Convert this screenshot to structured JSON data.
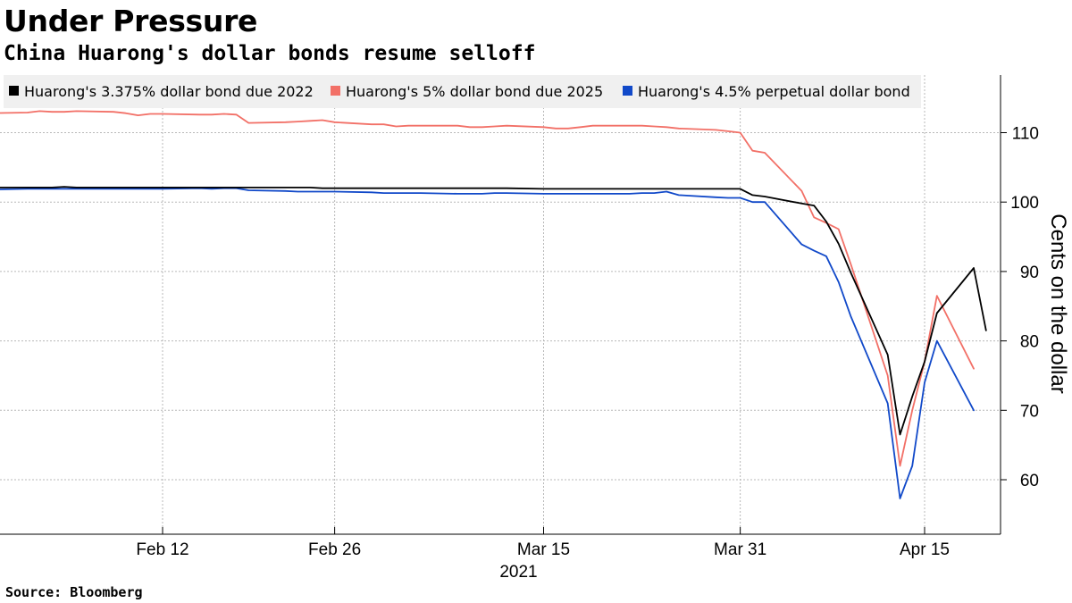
{
  "header": {
    "title": "Under Pressure",
    "subtitle": "China Huarong's dollar bonds resume selloff"
  },
  "footer": {
    "source": "Source: Bloomberg"
  },
  "chart_data": {
    "type": "line",
    "title": "Under Pressure",
    "subtitle": "China Huarong's dollar bonds resume selloff",
    "ylabel": "Cents on the dollar",
    "xlabel": "",
    "x_year_label": "2021",
    "ylim": [
      53,
      118
    ],
    "y_axis_side": "right",
    "y_ticks": [
      60,
      70,
      80,
      90,
      100,
      110
    ],
    "x_ticks": [
      {
        "date": "2021-02-12",
        "label": "Feb 12"
      },
      {
        "date": "2021-02-26",
        "label": "Feb 26"
      },
      {
        "date": "2021-03-15",
        "label": "Mar 15"
      },
      {
        "date": "2021-03-31",
        "label": "Mar 31"
      },
      {
        "date": "2021-04-15",
        "label": "Apr 15"
      }
    ],
    "grid": true,
    "legend_placement": "top",
    "x": [
      "2021-01-27",
      "2021-01-28",
      "2021-01-29",
      "2021-02-01",
      "2021-02-02",
      "2021-02-03",
      "2021-02-04",
      "2021-02-05",
      "2021-02-08",
      "2021-02-09",
      "2021-02-10",
      "2021-02-11",
      "2021-02-12",
      "2021-02-15",
      "2021-02-16",
      "2021-02-17",
      "2021-02-18",
      "2021-02-19",
      "2021-02-22",
      "2021-02-23",
      "2021-02-24",
      "2021-02-25",
      "2021-02-26",
      "2021-03-01",
      "2021-03-02",
      "2021-03-03",
      "2021-03-04",
      "2021-03-05",
      "2021-03-08",
      "2021-03-09",
      "2021-03-10",
      "2021-03-11",
      "2021-03-12",
      "2021-03-15",
      "2021-03-16",
      "2021-03-17",
      "2021-03-18",
      "2021-03-19",
      "2021-03-22",
      "2021-03-23",
      "2021-03-24",
      "2021-03-25",
      "2021-03-26",
      "2021-03-29",
      "2021-03-30",
      "2021-03-31",
      "2021-04-01",
      "2021-04-02",
      "2021-04-05",
      "2021-04-06",
      "2021-04-07",
      "2021-04-08",
      "2021-04-09",
      "2021-04-12",
      "2021-04-13",
      "2021-04-14",
      "2021-04-15",
      "2021-04-16",
      "2021-04-19",
      "2021-04-20",
      "2021-04-21"
    ],
    "series": [
      {
        "name": "Huarong's 3.375% dollar bond due 2022",
        "color": "#000000",
        "values": [
          102.1,
          102.1,
          102.1,
          102.1,
          102.1,
          102.1,
          102.2,
          102.1,
          102.1,
          102.1,
          102.1,
          102.1,
          102.1,
          102.1,
          102.1,
          102.1,
          102.1,
          102.1,
          102.1,
          102.1,
          102.1,
          102.0,
          102.0,
          102.0,
          102.0,
          102.0,
          102.0,
          102.0,
          102.0,
          102.0,
          102.0,
          102.0,
          102.0,
          101.9,
          101.9,
          101.9,
          101.9,
          101.9,
          101.9,
          101.9,
          101.9,
          101.9,
          101.9,
          101.9,
          101.9,
          101.9,
          101.0,
          100.8,
          99.8,
          99.5,
          97.2,
          94.0,
          89.8,
          78.0,
          66.5,
          72.0,
          77.0,
          84.0,
          90.5,
          81.5,
          null
        ]
      },
      {
        "name": "Huarong's 5% dollar bond due 2025",
        "color": "#f27067",
        "values": [
          112.8,
          112.9,
          112.8,
          112.9,
          113.1,
          113.0,
          113.0,
          113.1,
          113.0,
          112.8,
          112.5,
          112.7,
          112.7,
          112.6,
          112.6,
          112.7,
          112.6,
          111.4,
          111.5,
          111.6,
          111.7,
          111.8,
          111.5,
          111.2,
          111.2,
          110.9,
          111.0,
          111.0,
          111.0,
          110.8,
          110.8,
          110.9,
          111.0,
          110.8,
          110.6,
          110.6,
          110.8,
          111.0,
          111.0,
          111.0,
          110.9,
          110.8,
          110.6,
          110.4,
          110.2,
          110.0,
          107.4,
          107.1,
          101.6,
          97.8,
          97.0,
          96.1,
          91.0,
          75.0,
          62.0,
          70.0,
          77.0,
          86.5,
          76.0,
          null,
          null
        ]
      },
      {
        "name": "Huarong's 4.5% perpetual dollar bond",
        "color": "#1149c9",
        "values": [
          101.9,
          101.9,
          101.8,
          101.9,
          101.9,
          101.9,
          101.9,
          101.9,
          101.9,
          101.9,
          101.9,
          101.9,
          101.9,
          102.0,
          101.9,
          102.0,
          102.0,
          101.7,
          101.6,
          101.5,
          101.5,
          101.5,
          101.5,
          101.4,
          101.3,
          101.3,
          101.3,
          101.3,
          101.2,
          101.2,
          101.2,
          101.3,
          101.3,
          101.2,
          101.2,
          101.2,
          101.2,
          101.2,
          101.2,
          101.3,
          101.3,
          101.5,
          101.0,
          100.7,
          100.6,
          100.6,
          100.0,
          100.0,
          93.9,
          93.0,
          92.2,
          88.5,
          83.5,
          71.0,
          57.3,
          62.0,
          74.0,
          80.0,
          70.0,
          null,
          null
        ]
      }
    ]
  }
}
